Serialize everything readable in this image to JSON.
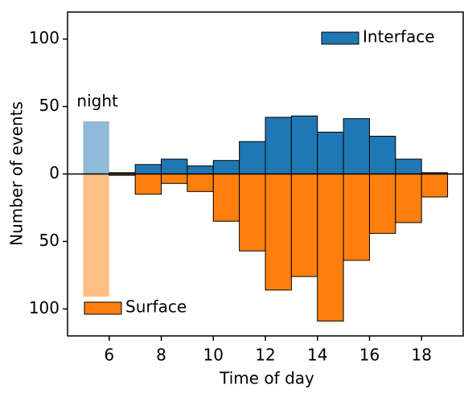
{
  "chart_data": {
    "type": "mirrored-histogram",
    "xlabel": "Time of day",
    "ylabel": "Number of events",
    "bins": [
      6,
      7,
      8,
      9,
      10,
      11,
      12,
      13,
      14,
      15,
      16,
      17,
      18,
      19
    ],
    "series": [
      {
        "name": "Interface",
        "color": "#1f77b4",
        "legend": "upper right",
        "values": [
          1,
          7,
          11,
          6,
          10,
          24,
          42,
          43,
          31,
          41,
          28,
          11,
          1
        ]
      },
      {
        "name": "Surface",
        "color": "#ff7f0e",
        "legend": "lower left",
        "values": [
          -1,
          -15,
          -7,
          -13,
          -35,
          -57,
          -86,
          -76,
          -109,
          -64,
          -44,
          -36,
          -17
        ]
      }
    ],
    "night": {
      "label": "night",
      "x": [
        5,
        6
      ],
      "upper": 39,
      "lower": -91,
      "colors": [
        "#8fbbd9",
        "#ffbf86"
      ]
    },
    "xlim": [
      4.4,
      19.6
    ],
    "xticks": [
      6,
      8,
      10,
      12,
      14,
      16,
      18
    ],
    "ylim": [
      -120,
      120
    ],
    "yticks": [
      {
        "value": -100,
        "label": "100"
      },
      {
        "value": -50,
        "label": "50"
      },
      0,
      50,
      100
    ]
  }
}
